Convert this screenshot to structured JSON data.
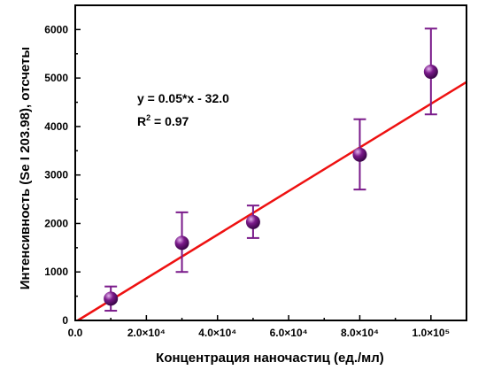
{
  "chart_data": {
    "type": "scatter",
    "xlabel": "Концентрация наночастиц (ед./мл)",
    "ylabel": "Интенсивность (Se I 203.98), отсчеты",
    "xlim": [
      0,
      110000
    ],
    "ylim": [
      0,
      6500
    ],
    "x_ticks": [
      {
        "value": 0,
        "label": "0.0"
      },
      {
        "value": 20000,
        "label": "2.0×10⁴"
      },
      {
        "value": 40000,
        "label": "4.0×10⁴"
      },
      {
        "value": 60000,
        "label": "6.0×10⁴"
      },
      {
        "value": 80000,
        "label": "8.0×10⁴"
      },
      {
        "value": 100000,
        "label": "1.0×10⁵"
      }
    ],
    "y_ticks": [
      {
        "value": 0,
        "label": "0"
      },
      {
        "value": 1000,
        "label": "1000"
      },
      {
        "value": 2000,
        "label": "2000"
      },
      {
        "value": 3000,
        "label": "3000"
      },
      {
        "value": 4000,
        "label": "4000"
      },
      {
        "value": 5000,
        "label": "5000"
      },
      {
        "value": 6000,
        "label": "6000"
      }
    ],
    "points": [
      {
        "x": 10000,
        "y": 450,
        "err_low": 200,
        "err_high": 700
      },
      {
        "x": 30000,
        "y": 1600,
        "err_low": 1000,
        "err_high": 2230
      },
      {
        "x": 50000,
        "y": 2030,
        "err_low": 1700,
        "err_high": 2370
      },
      {
        "x": 80000,
        "y": 3420,
        "err_low": 2700,
        "err_high": 4150
      },
      {
        "x": 100000,
        "y": 5130,
        "err_low": 4250,
        "err_high": 6020
      }
    ],
    "fit": {
      "slope": 0.045,
      "intercept": -32,
      "x_from": 0,
      "x_to": 110000
    },
    "annotation": {
      "equation": "y = 0.05*x - 32.0",
      "r2_prefix": "R",
      "r2_sup": "2",
      "r2_value": " = 0.97"
    },
    "colors": {
      "fit_line": "#ee1111",
      "marker": "#7a1a8a",
      "error_bar": "#7a1a8a"
    },
    "grid": false
  }
}
